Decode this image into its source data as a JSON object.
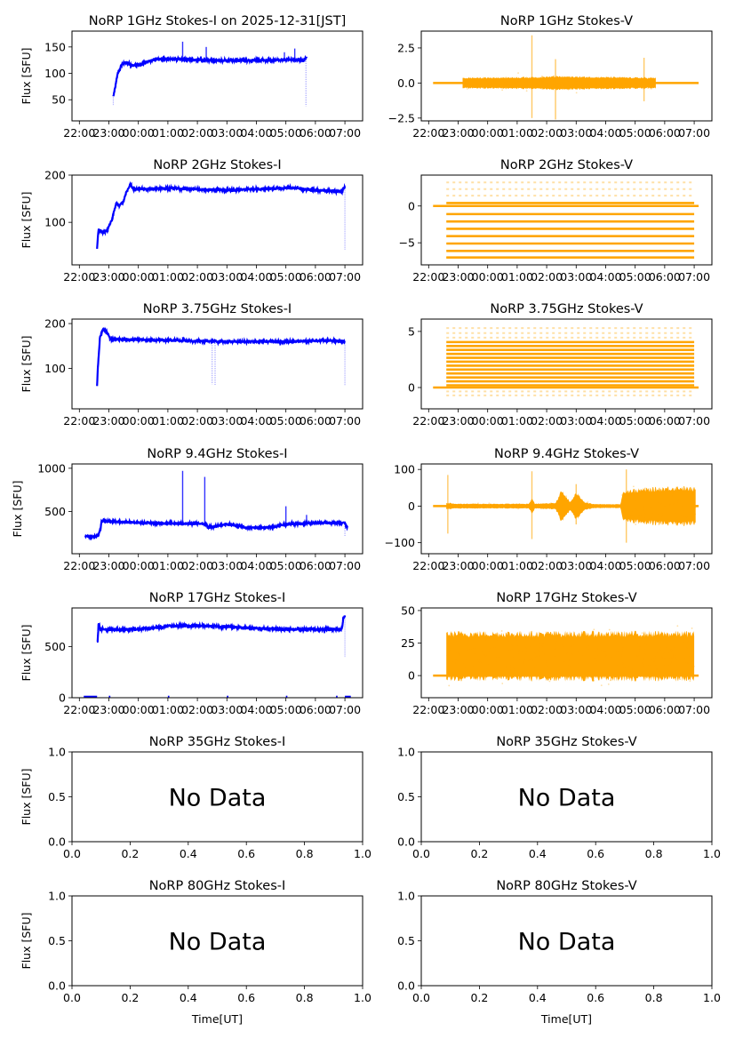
{
  "figure": {
    "time_axis_ticks": [
      "22:00",
      "23:00",
      "00:00",
      "01:00",
      "02:00",
      "03:00",
      "04:00",
      "05:00",
      "06:00",
      "07:00"
    ],
    "xlabel_bottom": "Time[UT]",
    "ylabel": "Flux [SFU]",
    "no_data_text": "No Data",
    "stokes_i_color": "#0000ff",
    "stokes_v_color": "#ffa500"
  },
  "chart_data": [
    {
      "id": "1ghz-i",
      "type": "scatter",
      "title": "NoRP 1GHz Stokes-I on 2025-12-31[JST]",
      "ylabel": "Flux [SFU]",
      "series_color": "#0000ff",
      "xlim_hours_from_22": [
        -0.25,
        9.6
      ],
      "ylim": [
        10,
        180
      ],
      "yticks": [
        50,
        100,
        150
      ],
      "ytick_labels": [
        "50",
        "100",
        "150"
      ],
      "profile": [
        [
          1.15,
          55
        ],
        [
          1.3,
          100
        ],
        [
          1.45,
          117
        ],
        [
          1.6,
          121
        ],
        [
          1.8,
          114
        ],
        [
          2.1,
          118
        ],
        [
          2.6,
          127
        ],
        [
          3.4,
          127
        ],
        [
          4.4,
          124
        ],
        [
          6.4,
          125
        ],
        [
          7.4,
          126
        ],
        [
          7.6,
          124
        ],
        [
          7.7,
          131
        ]
      ],
      "noise": 2.5,
      "spikes": [
        [
          3.5,
          160
        ],
        [
          4.3,
          150
        ],
        [
          6.95,
          140
        ],
        [
          7.3,
          147
        ]
      ],
      "dropouts": [
        [
          1.15,
          40
        ],
        [
          7.68,
          38
        ]
      ],
      "data_range": [
        1.15,
        7.7
      ]
    },
    {
      "id": "1ghz-v",
      "type": "scatter",
      "title": "NoRP 1GHz Stokes-V",
      "series_color": "#ffa500",
      "xlim_hours_from_22": [
        -0.25,
        9.6
      ],
      "ylim": [
        -2.7,
        3.7
      ],
      "yticks": [
        -2.5,
        0,
        2.5
      ],
      "ytick_labels": [
        "−2.5",
        "0.0",
        "2.5"
      ],
      "baseline": 0,
      "baseline_range": [
        0.15,
        9.15
      ],
      "band": [
        [
          1.15,
          0.35
        ],
        [
          3.5,
          0.4
        ],
        [
          4.3,
          0.45
        ],
        [
          7.7,
          0.35
        ]
      ],
      "spikes": [
        [
          3.5,
          3.4,
          -2.5
        ],
        [
          4.3,
          1.7,
          -2.6
        ],
        [
          7.3,
          1.8,
          -1.3
        ]
      ],
      "data_range": [
        1.15,
        7.7
      ]
    },
    {
      "id": "2ghz-i",
      "type": "scatter",
      "title": "NoRP 2GHz Stokes-I",
      "ylabel": "Flux [SFU]",
      "series_color": "#0000ff",
      "xlim_hours_from_22": [
        -0.25,
        9.6
      ],
      "ylim": [
        10,
        200
      ],
      "yticks": [
        100,
        200
      ],
      "ytick_labels": [
        "100",
        "200"
      ],
      "profile": [
        [
          0.6,
          45
        ],
        [
          0.65,
          85
        ],
        [
          0.8,
          78
        ],
        [
          0.95,
          85
        ],
        [
          1.1,
          105
        ],
        [
          1.25,
          140
        ],
        [
          1.35,
          135
        ],
        [
          1.5,
          145
        ],
        [
          1.6,
          165
        ],
        [
          1.72,
          180
        ],
        [
          1.85,
          170
        ],
        [
          3.0,
          172
        ],
        [
          4.0,
          170
        ],
        [
          5.0,
          168
        ],
        [
          7.2,
          173
        ],
        [
          8.0,
          168
        ],
        [
          8.9,
          165
        ],
        [
          9.0,
          175
        ]
      ],
      "noise": 3,
      "spikes": [],
      "dropouts": [
        [
          9.0,
          42
        ]
      ],
      "data_range": [
        0.6,
        9.0
      ]
    },
    {
      "id": "2ghz-v",
      "type": "levels",
      "title": "NoRP 2GHz Stokes-V",
      "series_color": "#ffa500",
      "xlim_hours_from_22": [
        -0.25,
        9.6
      ],
      "ylim": [
        -8,
        4.2
      ],
      "yticks": [
        -5,
        0
      ],
      "ytick_labels": [
        "−5",
        "0"
      ],
      "baseline": 0,
      "baseline_range": [
        0.15,
        9.15
      ],
      "levels_solid": [
        0.4,
        -1.1,
        -2.1,
        -3.1,
        -4.1,
        -5.1,
        -6.1,
        -7.0
      ],
      "levels_sparse": [
        1.4,
        2.3,
        3.2,
        -7.0
      ],
      "data_range": [
        0.6,
        9.0
      ]
    },
    {
      "id": "3ghz-i",
      "type": "scatter",
      "title": "NoRP 3.75GHz Stokes-I",
      "ylabel": "Flux [SFU]",
      "series_color": "#0000ff",
      "xlim_hours_from_22": [
        -0.25,
        9.6
      ],
      "ylim": [
        10,
        210
      ],
      "yticks": [
        100,
        200
      ],
      "ytick_labels": [
        "100",
        "200"
      ],
      "profile": [
        [
          0.6,
          62
        ],
        [
          0.63,
          105
        ],
        [
          0.7,
          170
        ],
        [
          0.8,
          188
        ],
        [
          0.95,
          180
        ],
        [
          1.05,
          165
        ],
        [
          1.2,
          165
        ],
        [
          2.0,
          164
        ],
        [
          3.0,
          163
        ],
        [
          4.0,
          161
        ],
        [
          5.0,
          160
        ],
        [
          7.0,
          160
        ],
        [
          8.5,
          162
        ],
        [
          9.0,
          160
        ]
      ],
      "noise": 2.5,
      "spikes": [
        [
          1.1,
          172
        ],
        [
          3.5,
          170
        ]
      ],
      "dropouts": [
        [
          4.5,
          65
        ],
        [
          4.6,
          62
        ],
        [
          9.0,
          62
        ]
      ],
      "data_range": [
        0.6,
        9.0
      ]
    },
    {
      "id": "3ghz-v",
      "type": "levels",
      "title": "NoRP 3.75GHz Stokes-V",
      "series_color": "#ffa500",
      "xlim_hours_from_22": [
        -0.25,
        9.6
      ],
      "ylim": [
        -1.9,
        6.1
      ],
      "yticks": [
        0,
        5
      ],
      "ytick_labels": [
        "0",
        "5"
      ],
      "baseline": 0,
      "baseline_range": [
        0.15,
        9.15
      ],
      "levels_solid": [
        0.2,
        0.55,
        0.9,
        1.25,
        1.6,
        1.95,
        2.3,
        2.65,
        3.0,
        3.35,
        3.7,
        4.05
      ],
      "levels_sparse": [
        4.45,
        4.85,
        5.3,
        -0.35,
        -0.7
      ],
      "data_range": [
        0.6,
        9.0
      ]
    },
    {
      "id": "9ghz-i",
      "type": "scatter",
      "title": "NoRP 9.4GHz Stokes-I",
      "ylabel": "Flux [SFU]",
      "series_color": "#0000ff",
      "xlim_hours_from_22": [
        -0.25,
        9.6
      ],
      "ylim": [
        10,
        1050
      ],
      "yticks": [
        500,
        1000
      ],
      "ytick_labels": [
        "500",
        "1000"
      ],
      "profile": [
        [
          0.6,
          210
        ],
        [
          0.65,
          230
        ],
        [
          0.72,
          300
        ],
        [
          0.75,
          390
        ],
        [
          1.0,
          385
        ],
        [
          2.0,
          370
        ],
        [
          3.0,
          362
        ],
        [
          3.5,
          360
        ],
        [
          4.3,
          355
        ],
        [
          4.35,
          310
        ],
        [
          4.6,
          330
        ],
        [
          5.0,
          350
        ],
        [
          5.5,
          330
        ],
        [
          5.6,
          310
        ],
        [
          6.5,
          315
        ],
        [
          7.0,
          350
        ],
        [
          8.0,
          365
        ],
        [
          9.0,
          370
        ],
        [
          9.05,
          320
        ]
      ],
      "noise": 12,
      "spikes": [
        [
          3.5,
          970
        ],
        [
          4.25,
          900
        ],
        [
          7.0,
          560
        ],
        [
          7.7,
          460
        ]
      ],
      "dropouts": [
        [
          0.2,
          210
        ],
        [
          9.0,
          210
        ]
      ],
      "data_range": [
        0.2,
        9.1
      ]
    },
    {
      "id": "9ghz-v",
      "type": "scatter",
      "title": "NoRP 9.4GHz Stokes-V",
      "series_color": "#ffa500",
      "xlim_hours_from_22": [
        -0.25,
        9.6
      ],
      "ylim": [
        -130,
        115
      ],
      "yticks": [
        -100,
        0,
        100
      ],
      "ytick_labels": [
        "−100",
        "0",
        "100"
      ],
      "baseline": 0,
      "baseline_range": [
        0.15,
        9.15
      ],
      "band": [
        [
          0.6,
          8
        ],
        [
          1.0,
          6
        ],
        [
          3.4,
          6
        ],
        [
          3.5,
          20
        ],
        [
          3.6,
          6
        ],
        [
          4.3,
          8
        ],
        [
          4.5,
          40
        ],
        [
          4.8,
          10
        ],
        [
          5.0,
          35
        ],
        [
          5.3,
          10
        ],
        [
          5.6,
          5
        ],
        [
          6.5,
          5
        ],
        [
          6.6,
          40
        ],
        [
          7.5,
          45
        ],
        [
          8.5,
          50
        ],
        [
          9.0,
          45
        ]
      ],
      "spikes": [
        [
          0.65,
          85,
          -75
        ],
        [
          3.5,
          95,
          -90
        ],
        [
          5.0,
          60,
          -50
        ],
        [
          6.7,
          100,
          -100
        ]
      ],
      "data_range": [
        0.6,
        9.05
      ]
    },
    {
      "id": "17ghz-i",
      "type": "scatter",
      "title": "NoRP 17GHz Stokes-I",
      "ylabel": "Flux [SFU]",
      "series_color": "#0000ff",
      "xlim_hours_from_22": [
        -0.25,
        9.6
      ],
      "ylim": [
        0,
        880
      ],
      "yticks": [
        0,
        500
      ],
      "ytick_labels": [
        "0",
        "500"
      ],
      "profile": [
        [
          0.62,
          540
        ],
        [
          0.65,
          740
        ],
        [
          0.72,
          670
        ],
        [
          1.5,
          670
        ],
        [
          2.5,
          680
        ],
        [
          3.0,
          705
        ],
        [
          4.0,
          705
        ],
        [
          5.0,
          695
        ],
        [
          6.0,
          680
        ],
        [
          7.0,
          670
        ],
        [
          8.9,
          670
        ],
        [
          8.95,
          790
        ]
      ],
      "noise": 15,
      "spikes": [],
      "dropouts": [
        [
          9.0,
          400
        ]
      ],
      "zeros": [
        [
          0.15,
          0.6
        ],
        [
          1.0,
          1.05
        ],
        [
          3.0,
          3.05
        ],
        [
          5.0,
          5.05
        ],
        [
          7.0,
          7.05
        ],
        [
          8.7,
          8.75
        ],
        [
          9.0,
          9.2
        ]
      ],
      "data_range": [
        0.6,
        9.0
      ]
    },
    {
      "id": "17ghz-v",
      "type": "scatter",
      "title": "NoRP 17GHz Stokes-V",
      "series_color": "#ffa500",
      "xlim_hours_from_22": [
        -0.25,
        9.6
      ],
      "ylim": [
        -17,
        52
      ],
      "yticks": [
        0,
        25,
        50
      ],
      "ytick_labels": [
        "0",
        "25",
        "50"
      ],
      "baseline": 0,
      "baseline_range": [
        0.15,
        9.15
      ],
      "band_offset": 15,
      "band": [
        [
          0.6,
          17
        ],
        [
          9.0,
          17
        ]
      ],
      "spikes": [],
      "data_range": [
        0.6,
        9.0
      ]
    },
    {
      "id": "35ghz-i",
      "type": "empty",
      "title": "NoRP 35GHz Stokes-I",
      "ylabel": "Flux [SFU]",
      "xlim": [
        0,
        1
      ],
      "ylim": [
        0,
        1
      ],
      "xtick_labels": [
        "0.0",
        "0.2",
        "0.4",
        "0.6",
        "0.8",
        "1.0"
      ],
      "ytick_labels": [
        "0.0",
        "0.5",
        "1.0"
      ],
      "annotation": "No Data"
    },
    {
      "id": "35ghz-v",
      "type": "empty",
      "title": "NoRP 35GHz Stokes-V",
      "xlim": [
        0,
        1
      ],
      "ylim": [
        0,
        1
      ],
      "xtick_labels": [
        "0.0",
        "0.2",
        "0.4",
        "0.6",
        "0.8",
        "1.0"
      ],
      "ytick_labels": [
        "0.0",
        "0.5",
        "1.0"
      ],
      "annotation": "No Data"
    },
    {
      "id": "80ghz-i",
      "type": "empty",
      "title": "NoRP 80GHz Stokes-I",
      "ylabel": "Flux [SFU]",
      "xlabel": "Time[UT]",
      "xlim": [
        0,
        1
      ],
      "ylim": [
        0,
        1
      ],
      "xtick_labels": [
        "0.0",
        "0.2",
        "0.4",
        "0.6",
        "0.8",
        "1.0"
      ],
      "ytick_labels": [
        "0.0",
        "0.5",
        "1.0"
      ],
      "annotation": "No Data"
    },
    {
      "id": "80ghz-v",
      "type": "empty",
      "title": "NoRP 80GHz Stokes-V",
      "xlabel": "Time[UT]",
      "xlim": [
        0,
        1
      ],
      "ylim": [
        0,
        1
      ],
      "xtick_labels": [
        "0.0",
        "0.2",
        "0.4",
        "0.6",
        "0.8",
        "1.0"
      ],
      "ytick_labels": [
        "0.0",
        "0.5",
        "1.0"
      ],
      "annotation": "No Data"
    }
  ]
}
